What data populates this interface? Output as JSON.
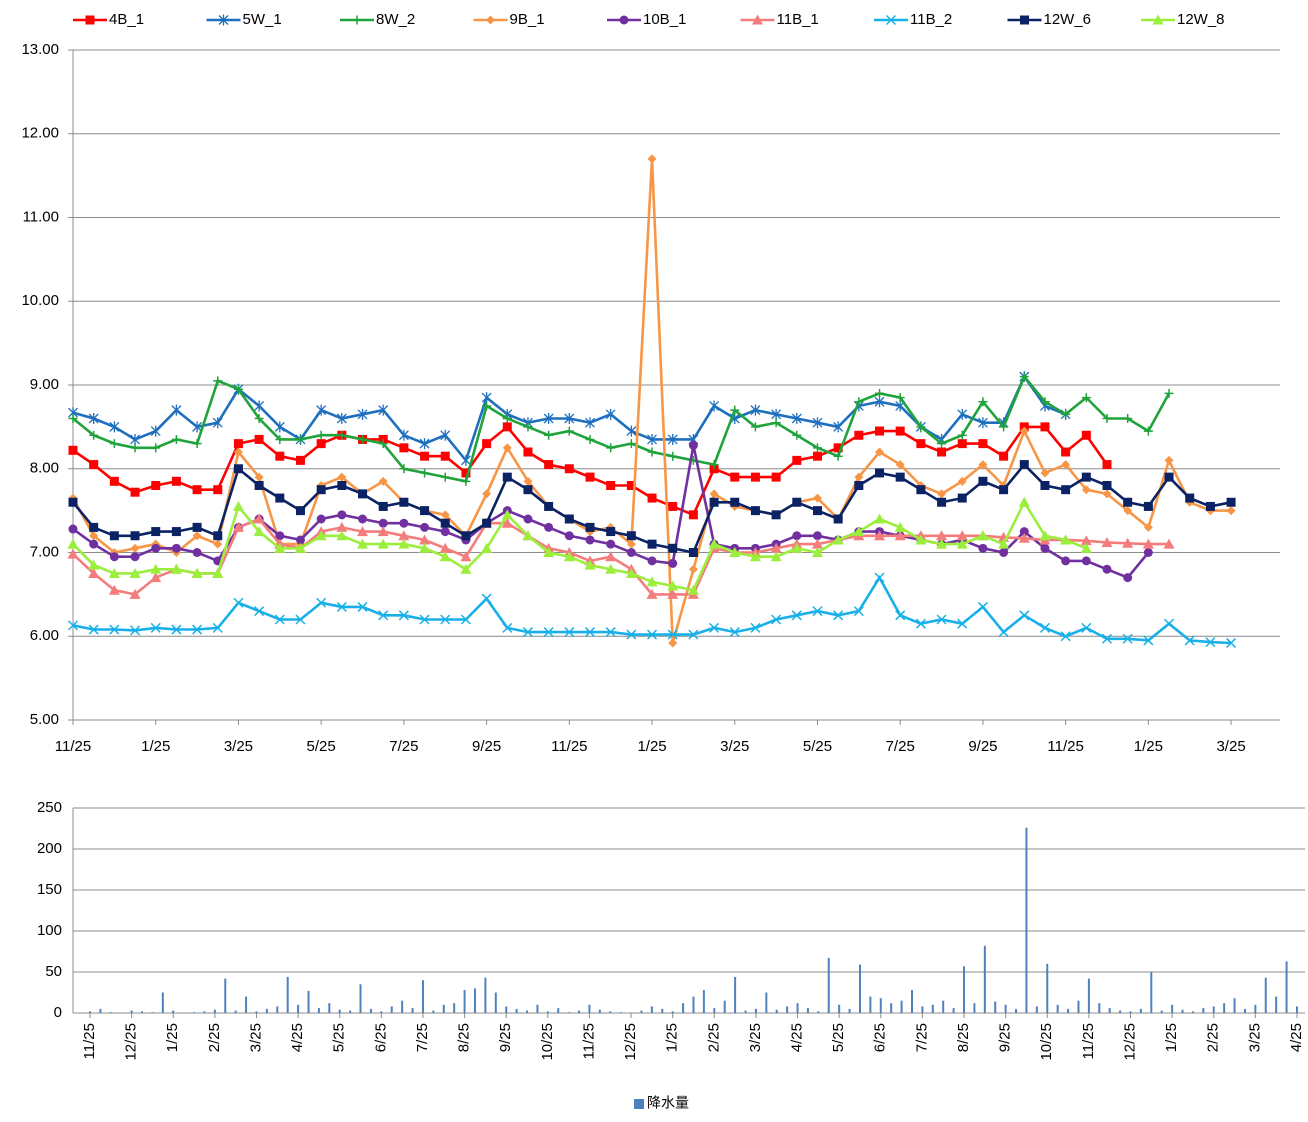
{
  "chart_data": [
    {
      "type": "line",
      "categories": [
        "11/25",
        null,
        null,
        null,
        "1/25",
        null,
        null,
        null,
        "3/25",
        null,
        null,
        null,
        "5/25",
        null,
        null,
        null,
        "7/25",
        null,
        null,
        null,
        "9/25",
        null,
        null,
        null,
        "11/25",
        null,
        null,
        null,
        "1/25",
        null,
        null,
        null,
        "3/25",
        null,
        null,
        null,
        "5/25",
        null,
        null,
        null,
        "7/25",
        null,
        null,
        null,
        "9/25",
        null,
        null,
        null,
        "11/25",
        null,
        null,
        null,
        "1/25",
        null,
        null,
        null,
        "3/25"
      ],
      "ylim": [
        5,
        13
      ],
      "yticks": [
        {
          "value": 5,
          "label": "5.00"
        },
        {
          "value": 6,
          "label": "6.00"
        },
        {
          "value": 7,
          "label": "7.00"
        },
        {
          "value": 8,
          "label": "8.00"
        },
        {
          "value": 9,
          "label": "9.00"
        },
        {
          "value": 10,
          "label": "10.00"
        },
        {
          "value": 11,
          "label": "11.00"
        },
        {
          "value": 12,
          "label": "12.00"
        },
        {
          "value": 13,
          "label": "13.00"
        }
      ],
      "grid": true,
      "legend": "top",
      "series": [
        {
          "name": "4B_1",
          "color": "#ff0000",
          "marker": "square",
          "values": [
            8.22,
            8.05,
            7.85,
            7.72,
            7.8,
            7.85,
            7.75,
            7.75,
            8.3,
            8.35,
            8.15,
            8.1,
            8.3,
            8.4,
            8.35,
            8.35,
            8.25,
            8.15,
            8.15,
            7.95,
            8.3,
            8.5,
            8.2,
            8.05,
            8.0,
            7.9,
            7.8,
            7.8,
            7.65,
            7.55,
            7.45,
            8.0,
            7.9,
            7.9,
            7.9,
            8.1,
            8.15,
            8.25,
            8.4,
            8.45,
            8.45,
            8.3,
            8.2,
            8.3,
            8.3,
            8.15,
            8.5,
            8.5,
            8.2,
            8.4,
            8.05,
            null,
            null,
            null,
            null,
            null,
            null
          ]
        },
        {
          "name": "5W_1",
          "color": "#1f6fbf",
          "marker": "asterisk",
          "values": [
            8.67,
            8.6,
            8.5,
            8.35,
            8.45,
            8.7,
            8.5,
            8.55,
            8.95,
            8.75,
            8.5,
            8.35,
            8.7,
            8.6,
            8.65,
            8.7,
            8.4,
            8.3,
            8.4,
            8.1,
            8.85,
            8.65,
            8.55,
            8.6,
            8.6,
            8.55,
            8.65,
            8.45,
            8.35,
            8.35,
            8.35,
            8.75,
            8.6,
            8.7,
            8.65,
            8.6,
            8.55,
            8.5,
            8.75,
            8.8,
            8.75,
            8.5,
            8.35,
            8.65,
            8.55,
            8.55,
            9.1,
            8.75,
            8.65,
            null,
            null,
            null,
            null,
            null,
            null,
            null,
            null
          ]
        },
        {
          "name": "8W_2",
          "color": "#1fa33a",
          "marker": "plus",
          "values": [
            8.6,
            8.4,
            8.3,
            8.25,
            8.25,
            8.35,
            8.3,
            9.05,
            8.95,
            8.6,
            8.35,
            8.35,
            8.4,
            8.4,
            8.35,
            8.3,
            8.0,
            7.95,
            7.9,
            7.85,
            8.75,
            8.6,
            8.5,
            8.4,
            8.45,
            8.35,
            8.25,
            8.3,
            8.2,
            8.15,
            8.1,
            8.05,
            8.7,
            8.5,
            8.55,
            8.4,
            8.25,
            8.15,
            8.8,
            8.9,
            8.85,
            8.5,
            8.3,
            8.4,
            8.8,
            8.5,
            9.1,
            8.8,
            8.65,
            8.85,
            8.6,
            8.6,
            8.45,
            8.9,
            null,
            null,
            null
          ]
        },
        {
          "name": "9B_1",
          "color": "#f79646",
          "marker": "diamond",
          "values": [
            7.65,
            7.2,
            7.0,
            7.05,
            7.1,
            7.0,
            7.2,
            7.1,
            8.2,
            7.9,
            7.1,
            7.1,
            7.8,
            7.9,
            7.7,
            7.85,
            7.6,
            7.5,
            7.45,
            7.2,
            7.7,
            8.25,
            7.85,
            7.55,
            7.4,
            7.25,
            7.3,
            7.1,
            11.7,
            5.92,
            6.8,
            7.7,
            7.55,
            7.5,
            7.45,
            7.6,
            7.65,
            7.4,
            7.9,
            8.2,
            8.05,
            7.8,
            7.7,
            7.85,
            8.05,
            7.8,
            8.45,
            7.95,
            8.05,
            7.75,
            7.7,
            7.5,
            7.3,
            8.1,
            7.6,
            7.5,
            7.5
          ]
        },
        {
          "name": "10B_1",
          "color": "#7030a0",
          "marker": "circle",
          "values": [
            7.28,
            7.1,
            6.95,
            6.95,
            7.05,
            7.05,
            7.0,
            6.9,
            7.3,
            7.4,
            7.2,
            7.15,
            7.4,
            7.45,
            7.4,
            7.35,
            7.35,
            7.3,
            7.25,
            7.15,
            7.35,
            7.5,
            7.4,
            7.3,
            7.2,
            7.15,
            7.1,
            7.0,
            6.9,
            6.87,
            8.28,
            7.1,
            7.05,
            7.05,
            7.1,
            7.2,
            7.2,
            7.15,
            7.25,
            7.25,
            7.2,
            7.15,
            7.1,
            7.15,
            7.05,
            7.0,
            7.25,
            7.05,
            6.9,
            6.9,
            6.8,
            6.7,
            7.0,
            null,
            null,
            null,
            null
          ]
        },
        {
          "name": "11B_1",
          "color": "#f47c7c",
          "marker": "triangle",
          "values": [
            6.98,
            6.75,
            6.55,
            6.5,
            6.7,
            6.8,
            6.75,
            6.75,
            7.3,
            7.4,
            7.1,
            7.05,
            7.25,
            7.3,
            7.25,
            7.25,
            7.2,
            7.15,
            7.05,
            6.95,
            7.35,
            7.35,
            7.2,
            7.05,
            7.0,
            6.9,
            6.95,
            6.8,
            6.5,
            6.5,
            6.5,
            7.05,
            7.0,
            7.0,
            7.05,
            7.1,
            7.1,
            7.15,
            7.2,
            7.2,
            7.2,
            7.2,
            7.2,
            7.2,
            7.2,
            7.18,
            7.17,
            7.15,
            7.15,
            7.14,
            7.12,
            7.11,
            7.1,
            7.1,
            null,
            null,
            null
          ]
        },
        {
          "name": "11B_2",
          "color": "#17b0e8",
          "marker": "x",
          "values": [
            6.13,
            6.08,
            6.08,
            6.07,
            6.1,
            6.08,
            6.08,
            6.1,
            6.4,
            6.3,
            6.2,
            6.2,
            6.4,
            6.35,
            6.35,
            6.25,
            6.25,
            6.2,
            6.2,
            6.2,
            6.45,
            6.1,
            6.05,
            6.05,
            6.05,
            6.05,
            6.05,
            6.02,
            6.02,
            6.02,
            6.02,
            6.1,
            6.05,
            6.1,
            6.2,
            6.25,
            6.3,
            6.25,
            6.3,
            6.7,
            6.25,
            6.15,
            6.2,
            6.15,
            6.35,
            6.05,
            6.25,
            6.1,
            6.0,
            6.1,
            5.97,
            5.97,
            5.95,
            6.15,
            5.95,
            5.93,
            5.92
          ]
        },
        {
          "name": "12W_6",
          "color": "#0b2265",
          "marker": "square",
          "values": [
            7.6,
            7.3,
            7.2,
            7.2,
            7.25,
            7.25,
            7.3,
            7.2,
            8.0,
            7.8,
            7.65,
            7.5,
            7.75,
            7.8,
            7.7,
            7.55,
            7.6,
            7.5,
            7.35,
            7.2,
            7.35,
            7.9,
            7.75,
            7.55,
            7.4,
            7.3,
            7.25,
            7.2,
            7.1,
            7.05,
            7.0,
            7.6,
            7.6,
            7.5,
            7.45,
            7.6,
            7.5,
            7.4,
            7.8,
            7.95,
            7.9,
            7.75,
            7.6,
            7.65,
            7.85,
            7.75,
            8.05,
            7.8,
            7.75,
            7.9,
            7.8,
            7.6,
            7.55,
            7.9,
            7.65,
            7.55,
            7.6
          ]
        },
        {
          "name": "12W_8",
          "color": "#9bef3c",
          "marker": "triangle",
          "values": [
            7.1,
            6.85,
            6.75,
            6.75,
            6.8,
            6.8,
            6.75,
            6.75,
            7.55,
            7.25,
            7.05,
            7.05,
            7.2,
            7.2,
            7.1,
            7.1,
            7.1,
            7.05,
            6.95,
            6.8,
            7.05,
            7.45,
            7.2,
            7.0,
            6.95,
            6.85,
            6.8,
            6.75,
            6.65,
            6.6,
            6.55,
            7.1,
            7.0,
            6.95,
            6.95,
            7.05,
            7.0,
            7.15,
            7.25,
            7.4,
            7.3,
            7.15,
            7.1,
            7.1,
            7.2,
            7.1,
            7.6,
            7.2,
            7.15,
            7.05,
            null,
            null,
            null,
            null,
            null,
            null,
            null
          ]
        }
      ]
    },
    {
      "type": "bar",
      "categories": [
        "11/25",
        null,
        null,
        null,
        "12/25",
        null,
        null,
        null,
        "1/25",
        null,
        null,
        null,
        "2/25",
        null,
        null,
        null,
        "3/25",
        null,
        null,
        null,
        "4/25",
        null,
        null,
        null,
        "5/25",
        null,
        null,
        null,
        "6/25",
        null,
        null,
        null,
        "7/25",
        null,
        null,
        null,
        "8/25",
        null,
        null,
        null,
        "9/25",
        null,
        null,
        null,
        "10/25",
        null,
        null,
        null,
        "11/25",
        null,
        null,
        null,
        "12/25",
        null,
        null,
        null,
        "1/25",
        null,
        null,
        null,
        "2/25",
        null,
        null,
        null,
        "3/25",
        null,
        null,
        null,
        "4/25",
        null,
        null,
        null,
        "5/25",
        null,
        null,
        null,
        "6/25",
        null,
        null,
        null,
        "7/25",
        null,
        null,
        null,
        "8/25",
        null,
        null,
        null,
        "9/25",
        null,
        null,
        null,
        "10/25",
        null,
        null,
        null,
        "11/25",
        null,
        null,
        null,
        "12/25",
        null,
        null,
        null,
        "1/25",
        null,
        null,
        null,
        "2/25",
        null,
        null,
        null,
        "3/25",
        null,
        null,
        null,
        "4/25"
      ],
      "ylim": [
        0,
        250
      ],
      "yticks": [
        0,
        50,
        100,
        150,
        200,
        250
      ],
      "grid": true,
      "legend": "bottom",
      "series": [
        {
          "name": "降水量",
          "color": "#4f81bd",
          "values": [
            2,
            5,
            1,
            0,
            3,
            2,
            1,
            25,
            3,
            0,
            1,
            2,
            4,
            42,
            3,
            20,
            2,
            5,
            8,
            44,
            10,
            27,
            6,
            12,
            4,
            3,
            35,
            5,
            2,
            8,
            15,
            6,
            40,
            3,
            10,
            12,
            28,
            30,
            43,
            25,
            8,
            5,
            3,
            10,
            2,
            6,
            1,
            3,
            10,
            4,
            2,
            1,
            0,
            3,
            8,
            5,
            2,
            12,
            20,
            28,
            6,
            15,
            44,
            3,
            5,
            25,
            4,
            8,
            12,
            6,
            2,
            67,
            10,
            5,
            59,
            20,
            18,
            12,
            15,
            28,
            8,
            10,
            15,
            6,
            57,
            12,
            82,
            14,
            10,
            5,
            226,
            8,
            60,
            10,
            5,
            15,
            42,
            12,
            6,
            3,
            2,
            5,
            50,
            3,
            10,
            4,
            2,
            6,
            8,
            12,
            18,
            5,
            10,
            43,
            20,
            63,
            8
          ]
        }
      ]
    }
  ]
}
